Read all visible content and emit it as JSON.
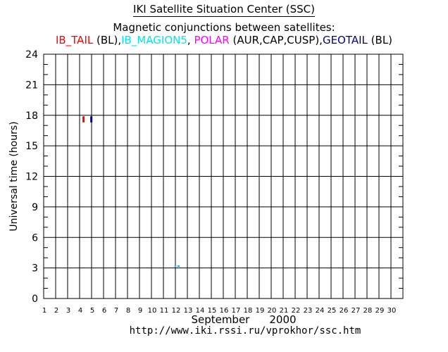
{
  "header": {
    "title": "IKI Satellite Situation Center (SSC)",
    "subtitle": "Magnetic conjunctions between satellites:",
    "legend": [
      {
        "text": "IB_TAIL",
        "color": "#ff0000"
      },
      {
        "text": " (BL),",
        "color": "#000000"
      },
      {
        "text": "IB_MAGION5",
        "color": "#00e5ee"
      },
      {
        "text": ", ",
        "color": "#000000"
      },
      {
        "text": "POLAR",
        "color": "#ff00ff"
      },
      {
        "text": " (AUR,CAP,CUSP),",
        "color": "#000000"
      },
      {
        "text": "GEOTAIL",
        "color": "#000080"
      },
      {
        "text": " (BL)",
        "color": "#000000"
      }
    ]
  },
  "footer": {
    "month": "September",
    "year": "2000",
    "url": "http://www.iki.rssi.ru/vprokhor/ssc.htm"
  },
  "chart_data": {
    "type": "scatter",
    "ylabel": "Universal time (hours)",
    "xlabel": "September    2000",
    "x_ticks": [
      "1",
      "2",
      "3",
      "4",
      "5",
      "6",
      "7",
      "8",
      "9",
      "10",
      "11",
      "12",
      "13",
      "14",
      "15",
      "16",
      "17",
      "18",
      "19",
      "20",
      "21",
      "22",
      "23",
      "24",
      "25",
      "26",
      "27",
      "28",
      "29",
      "30"
    ],
    "y_ticks": [
      "0",
      "3",
      "6",
      "9",
      "12",
      "15",
      "18",
      "21",
      "24"
    ],
    "xlim": [
      1,
      31
    ],
    "ylim": [
      0,
      24
    ],
    "grid": true,
    "series": [
      {
        "name": "IB_TAIL",
        "color": "#ff0000",
        "events": [
          {
            "day": 4.33,
            "start": 17.3,
            "end": 17.9
          }
        ]
      },
      {
        "name": "GEOTAIL",
        "color": "#000080",
        "events": [
          {
            "day": 4.98,
            "start": 17.3,
            "end": 17.9
          }
        ]
      },
      {
        "name": "IB_MAGION5",
        "color": "#00e5ee",
        "events": [
          {
            "day": 12.0,
            "start": 3.05,
            "end": 3.25
          }
        ]
      },
      {
        "name": "POLAR",
        "color": "#ff00ff",
        "events": []
      }
    ]
  }
}
